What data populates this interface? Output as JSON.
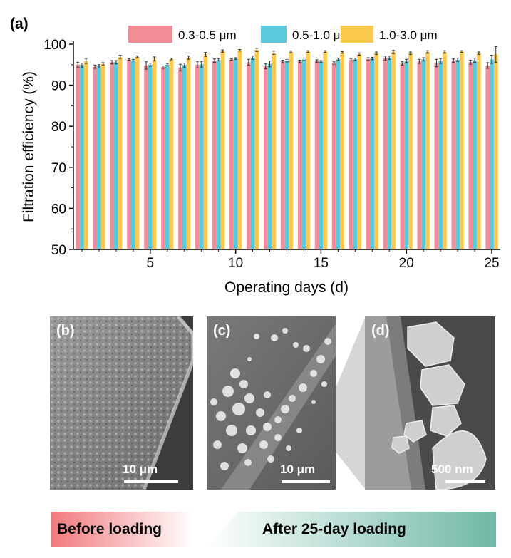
{
  "chart_data": {
    "panel": "(a)",
    "type": "bar",
    "xlabel": "Operating days (d)",
    "ylabel": "Filtration efficiency (%)",
    "ylim": [
      50,
      100
    ],
    "xlim": [
      0.5,
      25.5
    ],
    "yticks": [
      50,
      60,
      70,
      80,
      90,
      100
    ],
    "xticks": [
      5,
      10,
      15,
      20,
      25
    ],
    "legend_position": "top",
    "grid": false,
    "x": [
      1,
      2,
      3,
      4,
      5,
      6,
      7,
      8,
      9,
      10,
      11,
      12,
      13,
      14,
      15,
      16,
      17,
      18,
      19,
      20,
      21,
      22,
      23,
      24,
      25
    ],
    "series": [
      {
        "name": "0.3-0.5 μm",
        "color": "#f28c96",
        "values": [
          95.0,
          94.5,
          95.6,
          96.3,
          94.8,
          94.4,
          94.3,
          95.0,
          96.0,
          96.3,
          95.6,
          94.6,
          95.8,
          95.8,
          95.9,
          95.4,
          96.2,
          96.4,
          96.6,
          95.3,
          95.8,
          95.4,
          96.0,
          95.6,
          94.8
        ],
        "errors": [
          0.6,
          0.4,
          0.4,
          0.2,
          0.9,
          0.3,
          0.8,
          0.8,
          0.4,
          0.2,
          0.7,
          0.6,
          0.3,
          0.3,
          0.3,
          0.3,
          0.3,
          0.3,
          0.5,
          0.4,
          0.5,
          0.9,
          0.4,
          0.5,
          0.7
        ]
      },
      {
        "name": "0.5-1.0 μm",
        "color": "#5bc8dc",
        "values": [
          94.9,
          94.6,
          95.6,
          96.1,
          95.0,
          95.0,
          94.9,
          95.1,
          96.2,
          96.5,
          96.7,
          95.2,
          96.0,
          96.3,
          95.8,
          96.3,
          96.3,
          96.5,
          96.7,
          95.9,
          96.3,
          95.9,
          96.2,
          96.1,
          96.3
        ],
        "errors": [
          0.5,
          0.4,
          0.4,
          0.2,
          0.4,
          0.3,
          0.5,
          0.7,
          0.3,
          0.2,
          0.4,
          0.7,
          0.3,
          0.3,
          0.2,
          0.3,
          0.3,
          0.3,
          0.4,
          0.4,
          0.4,
          0.6,
          0.4,
          0.5,
          1.0
        ]
      },
      {
        "name": "1.0-3.0 μm",
        "color": "#fbc94d",
        "values": [
          95.9,
          95.2,
          96.9,
          96.9,
          96.4,
          96.4,
          96.7,
          97.5,
          98.3,
          98.5,
          98.6,
          97.9,
          98.1,
          98.2,
          98.2,
          98.0,
          97.6,
          97.8,
          98.1,
          97.8,
          98.1,
          98.1,
          98.2,
          97.8,
          97.5
        ],
        "errors": [
          0.6,
          0.3,
          0.4,
          0.2,
          0.5,
          0.2,
          0.4,
          0.5,
          0.3,
          0.2,
          0.4,
          0.4,
          0.2,
          0.2,
          0.2,
          0.2,
          0.3,
          0.3,
          0.4,
          0.3,
          0.3,
          0.3,
          0.2,
          0.3,
          1.9
        ]
      }
    ]
  },
  "sem_panels": [
    {
      "label": "(b)",
      "scale": "10 μm"
    },
    {
      "label": "(c)",
      "scale": "10 μm"
    },
    {
      "label": "(d)",
      "scale": "500 nm"
    }
  ],
  "banner": {
    "before": "Before loading",
    "after": "After 25-day loading",
    "before_color": "#f07a7e",
    "after_color": "#6fb8a6"
  }
}
